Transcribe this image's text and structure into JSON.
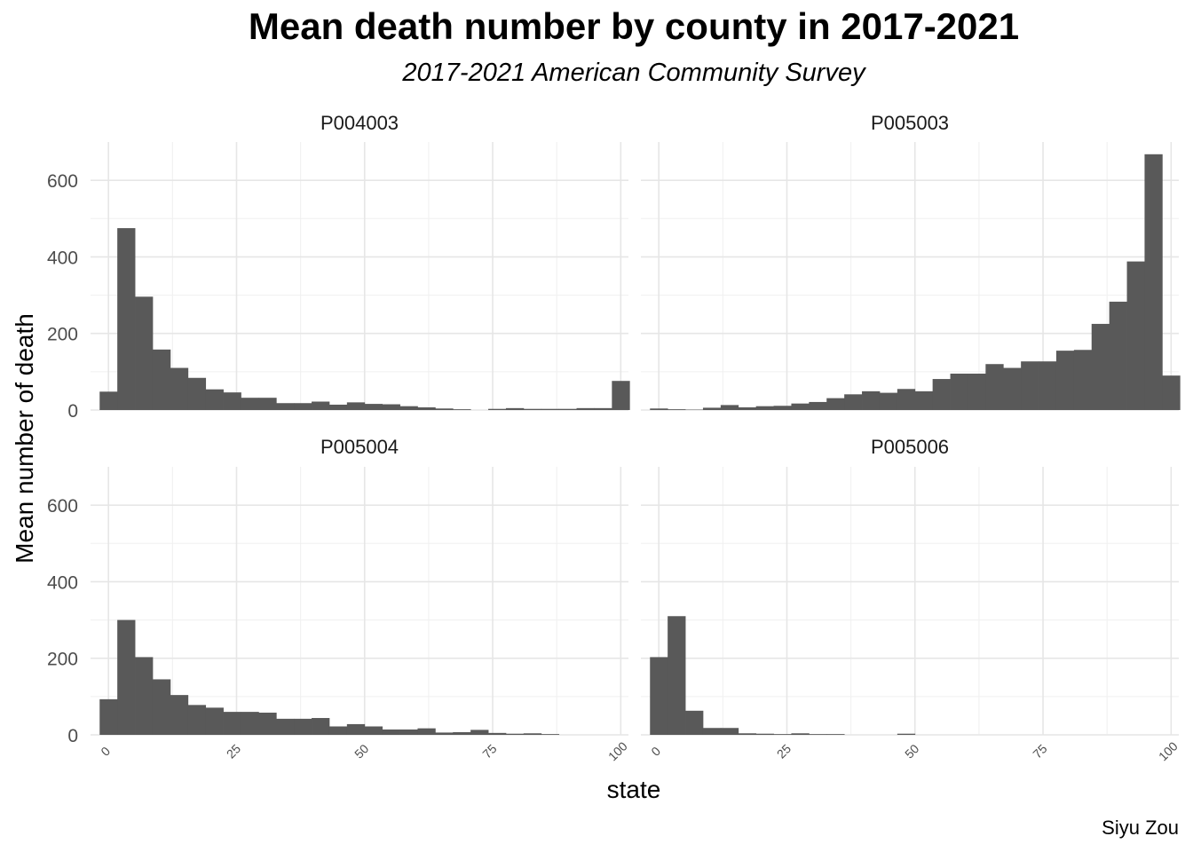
{
  "chart_data": {
    "type": "histogram",
    "title": "Mean death number by county in 2017-2021",
    "subtitle": "2017-2021 American Community Survey",
    "xlabel": "state",
    "ylabel": "Mean number of death",
    "caption": "Siyu Zou",
    "facet_layout": "2x2",
    "grid": true,
    "xlim": [
      -3.5,
      101.5
    ],
    "ylim": [
      0,
      700
    ],
    "x_ticks": [
      0,
      25,
      50,
      75,
      100
    ],
    "y_ticks": [
      0,
      200,
      400,
      600
    ],
    "bin_width": 3.448,
    "bin_start": -1.724,
    "series": [
      {
        "name": "P004003",
        "values": [
          48,
          475,
          296,
          158,
          110,
          84,
          54,
          46,
          32,
          32,
          18,
          18,
          22,
          14,
          20,
          16,
          15,
          10,
          7,
          4,
          2,
          0,
          3,
          5,
          3,
          3,
          3,
          5,
          5,
          76
        ]
      },
      {
        "name": "P005003",
        "values": [
          4,
          2,
          1,
          6,
          13,
          7,
          10,
          11,
          17,
          21,
          31,
          41,
          49,
          45,
          55,
          49,
          81,
          95,
          95,
          120,
          110,
          127,
          127,
          155,
          157,
          225,
          283,
          388,
          668,
          90
        ]
      },
      {
        "name": "P005004",
        "values": [
          93,
          300,
          203,
          145,
          104,
          78,
          71,
          60,
          60,
          58,
          42,
          42,
          44,
          22,
          28,
          22,
          14,
          14,
          17,
          6,
          7,
          13,
          5,
          3,
          4,
          2,
          0,
          0,
          0,
          0
        ]
      },
      {
        "name": "P005006",
        "values": [
          203,
          310,
          63,
          18,
          18,
          4,
          3,
          2,
          4,
          2,
          2,
          0,
          0,
          0,
          3,
          0,
          0,
          0,
          0,
          0,
          0,
          0,
          0,
          0,
          0,
          0,
          0,
          0,
          0,
          0
        ]
      }
    ]
  }
}
